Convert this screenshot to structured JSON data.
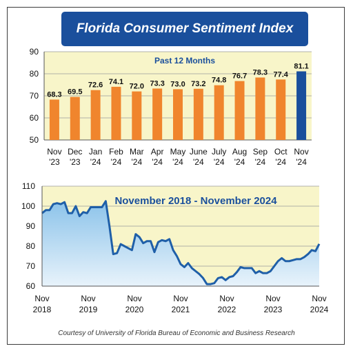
{
  "title": "Florida Consumer Sentiment Index",
  "credit": "Courtesy of University of Florida Bureau of Economic and Business Research",
  "colors": {
    "banner": "#1a4f9c",
    "bar": "#f0852d",
    "bar_highlight": "#1a4f9c",
    "plot_bg": "#f8f5c9",
    "line": "#1f5fa8",
    "area_top": "#8cc3ea",
    "area_bottom": "#e8f3fb"
  },
  "chart_data": [
    {
      "type": "bar",
      "title": "Past 12 Months",
      "categories": [
        [
          "Nov",
          "'23"
        ],
        [
          "Dec",
          "'23"
        ],
        [
          "Jan",
          "'24"
        ],
        [
          "Feb",
          "'24"
        ],
        [
          "Mar",
          "'24"
        ],
        [
          "Apr",
          "'24"
        ],
        [
          "May",
          "'24"
        ],
        [
          "June",
          "'24"
        ],
        [
          "July",
          "'24"
        ],
        [
          "Aug",
          "'24"
        ],
        [
          "Sep",
          "'24"
        ],
        [
          "Oct",
          "'24"
        ],
        [
          "Nov",
          "'24"
        ]
      ],
      "values": [
        68.3,
        69.5,
        72.6,
        74.1,
        72.0,
        73.3,
        73.0,
        73.2,
        74.8,
        76.7,
        78.3,
        77.4,
        81.1
      ],
      "labels": [
        "68.3",
        "69.5",
        "72.6",
        "74.1",
        "72.0",
        "73.3",
        "73.0",
        "73.2",
        "74.8",
        "76.7",
        "78.3",
        "77.4",
        "81.1"
      ],
      "highlight_index": 12,
      "ylim": [
        50,
        90
      ],
      "yticks": [
        50,
        60,
        70,
        80,
        90
      ],
      "grid": true
    },
    {
      "type": "area",
      "title": "November 2018 - November 2024",
      "x_start": "2018-11",
      "x_ticks": [
        [
          "Nov",
          "2018"
        ],
        [
          "Nov",
          "2019"
        ],
        [
          "Nov",
          "2020"
        ],
        [
          "Nov",
          "2021"
        ],
        [
          "Nov",
          "2022"
        ],
        [
          "Nov",
          "2023"
        ],
        [
          "Nov",
          "2024"
        ]
      ],
      "values": [
        96.5,
        98.0,
        98.0,
        101.0,
        101.5,
        101.0,
        102.0,
        96.5,
        96.5,
        100.0,
        95.0,
        97.0,
        96.5,
        99.5,
        99.5,
        99.5,
        99.5,
        102.5,
        90.0,
        76.0,
        76.5,
        81.0,
        80.0,
        79.0,
        78.0,
        86.0,
        84.5,
        81.5,
        82.5,
        82.5,
        77.0,
        82.0,
        83.0,
        82.5,
        83.5,
        78.0,
        75.0,
        71.0,
        69.5,
        71.5,
        69.0,
        67.5,
        66.0,
        64.0,
        61.0,
        61.0,
        61.5,
        64.0,
        64.5,
        63.0,
        64.5,
        65.0,
        67.0,
        69.5,
        69.0,
        69.0,
        69.0,
        66.5,
        67.5,
        66.5,
        66.5,
        67.5,
        70.0,
        72.5,
        74.0,
        72.5,
        72.5,
        73.0,
        73.5,
        73.5,
        74.5,
        76.0,
        78.0,
        77.5,
        81.1
      ],
      "ylim": [
        60,
        110
      ],
      "yticks": [
        60,
        70,
        80,
        90,
        100,
        110
      ],
      "grid": true
    }
  ]
}
